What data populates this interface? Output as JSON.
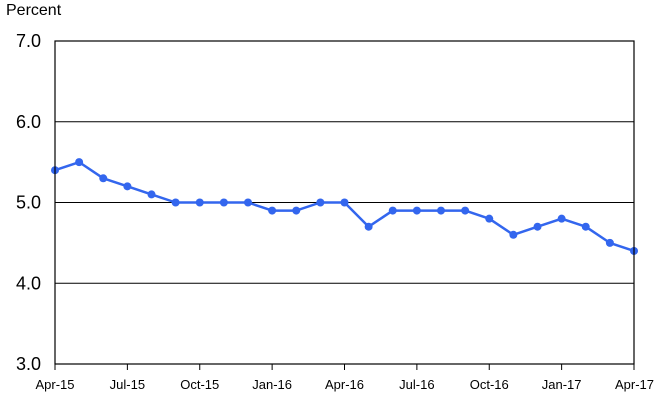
{
  "chart_data": {
    "type": "line",
    "title": "",
    "xlabel": "",
    "ylabel": "Percent",
    "ylim": [
      3.0,
      7.0
    ],
    "yticks": [
      "3.0",
      "4.0",
      "5.0",
      "6.0",
      "7.0"
    ],
    "xtick_labels": [
      "Apr-15",
      "Jul-15",
      "Oct-15",
      "Jan-16",
      "Apr-16",
      "Jul-16",
      "Oct-16",
      "Jan-17",
      "Apr-17"
    ],
    "grid": "horizontal",
    "x": [
      "Apr-15",
      "May-15",
      "Jun-15",
      "Jul-15",
      "Aug-15",
      "Sep-15",
      "Oct-15",
      "Nov-15",
      "Dec-15",
      "Jan-16",
      "Feb-16",
      "Mar-16",
      "Apr-16",
      "May-16",
      "Jun-16",
      "Jul-16",
      "Aug-16",
      "Sep-16",
      "Oct-16",
      "Nov-16",
      "Dec-16",
      "Jan-17",
      "Feb-17",
      "Mar-17",
      "Apr-17"
    ],
    "series": [
      {
        "name": "",
        "color": "#3366ee",
        "values": [
          5.4,
          5.5,
          5.3,
          5.2,
          5.1,
          5.0,
          5.0,
          5.0,
          5.0,
          4.9,
          4.9,
          5.0,
          5.0,
          4.7,
          4.9,
          4.9,
          4.9,
          4.9,
          4.8,
          4.6,
          4.7,
          4.8,
          4.7,
          4.5,
          4.4
        ]
      }
    ]
  }
}
